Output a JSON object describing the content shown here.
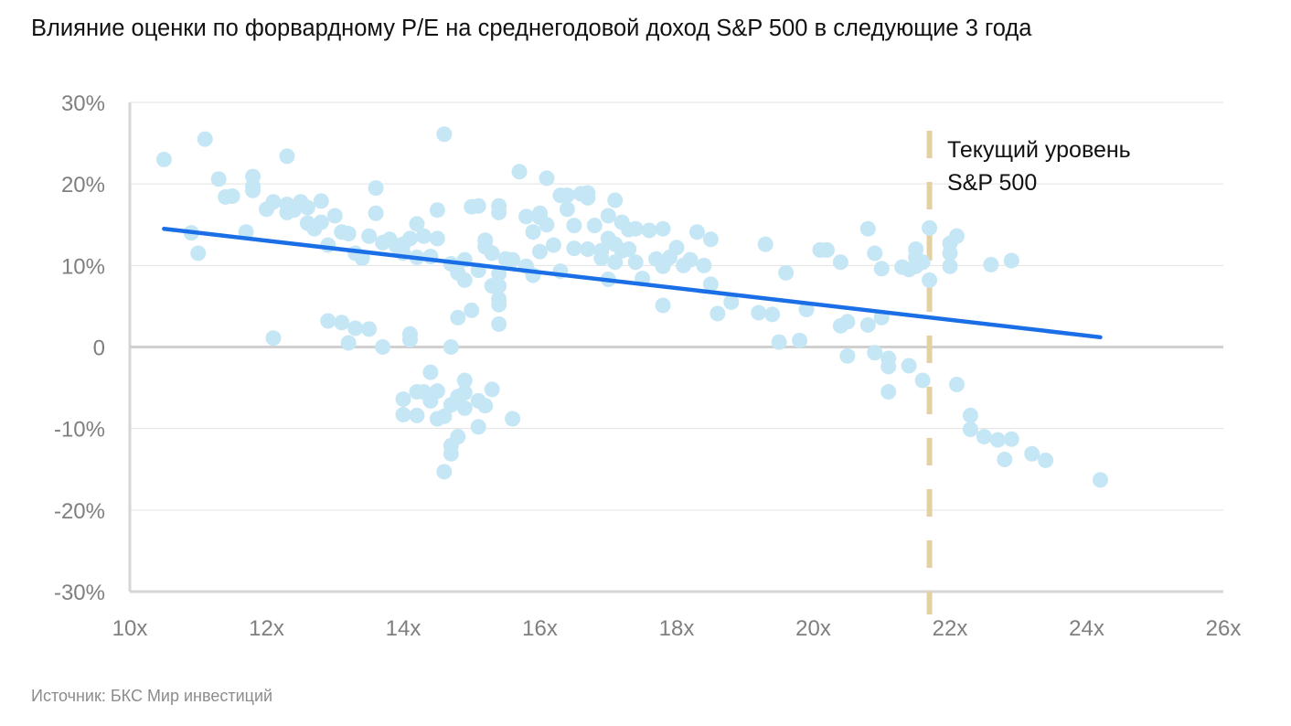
{
  "chart_data": {
    "type": "scatter",
    "title": "Влияние оценки по форвардному P/E на среднегодовой доход S&P 500 в следующие 3 года",
    "xlabel": "",
    "ylabel": "",
    "xlim": [
      10,
      26
    ],
    "ylim": [
      -30,
      30
    ],
    "x_ticks": [
      10,
      12,
      14,
      16,
      18,
      20,
      22,
      24,
      26
    ],
    "x_tick_labels": [
      "10x",
      "12x",
      "14x",
      "16x",
      "18x",
      "20x",
      "22x",
      "24x",
      "26x"
    ],
    "y_ticks": [
      -30,
      -20,
      -10,
      0,
      10,
      20,
      30
    ],
    "y_tick_labels": [
      "-30%",
      "-20%",
      "-10%",
      "0",
      "10%",
      "20%",
      "30%"
    ],
    "grid": "horizontal",
    "colors": {
      "points": "#c5e6f5",
      "trend": "#1a6ee6",
      "current_line": "#e3d1a4",
      "grid": "#e3e3e3",
      "axis": "#d6d6d6",
      "zero_line": "#d0d0d0"
    },
    "series": [
      {
        "points": [
          [
            10.5,
            23
          ],
          [
            11.1,
            25.5
          ],
          [
            11.3,
            20.6
          ],
          [
            11.4,
            18.4
          ],
          [
            11.5,
            18.5
          ],
          [
            10.9,
            14
          ],
          [
            11.0,
            11.5
          ],
          [
            11.7,
            14.1
          ],
          [
            11.8,
            20.9
          ],
          [
            11.8,
            19.7
          ],
          [
            11.8,
            19.2
          ],
          [
            12.0,
            16.9
          ],
          [
            12.1,
            17.8
          ],
          [
            12.3,
            23.4
          ],
          [
            12.3,
            17.5
          ],
          [
            12.3,
            16.5
          ],
          [
            12.4,
            16.8
          ],
          [
            12.5,
            17.8
          ],
          [
            12.6,
            17.1
          ],
          [
            12.6,
            15.2
          ],
          [
            12.7,
            14.5
          ],
          [
            12.8,
            17.9
          ],
          [
            12.8,
            15.3
          ],
          [
            12.9,
            12.5
          ],
          [
            13.0,
            16.1
          ],
          [
            13.1,
            14.1
          ],
          [
            13.2,
            13.9
          ],
          [
            13.3,
            11.5
          ],
          [
            13.4,
            10.9
          ],
          [
            13.5,
            13.6
          ],
          [
            13.6,
            19.5
          ],
          [
            13.6,
            16.4
          ],
          [
            13.7,
            12.8
          ],
          [
            13.8,
            13.2
          ],
          [
            13.9,
            12.4
          ],
          [
            14.0,
            11.5
          ],
          [
            14.0,
            12.6
          ],
          [
            14.1,
            13.3
          ],
          [
            14.2,
            15.1
          ],
          [
            14.2,
            11.0
          ],
          [
            14.3,
            13.6
          ],
          [
            14.4,
            11.1
          ],
          [
            14.5,
            13.3
          ],
          [
            14.5,
            16.8
          ],
          [
            14.6,
            26.1
          ],
          [
            14.7,
            10.2
          ],
          [
            14.8,
            9.1
          ],
          [
            14.9,
            10.7
          ],
          [
            14.9,
            8.2
          ],
          [
            15.0,
            17.2
          ],
          [
            15.1,
            17.3
          ],
          [
            15.1,
            9.4
          ],
          [
            15.2,
            13.1
          ],
          [
            15.2,
            12.3
          ],
          [
            15.3,
            11.5
          ],
          [
            15.3,
            7.5
          ],
          [
            15.4,
            17.3
          ],
          [
            15.4,
            16.5
          ],
          [
            15.4,
            9.0
          ],
          [
            15.4,
            7.5
          ],
          [
            15.4,
            5.9
          ],
          [
            15.4,
            5.2
          ],
          [
            15.5,
            10.8
          ],
          [
            15.6,
            10.7
          ],
          [
            15.7,
            21.5
          ],
          [
            15.8,
            9.9
          ],
          [
            15.8,
            16.0
          ],
          [
            15.9,
            14.1
          ],
          [
            15.9,
            8.8
          ],
          [
            16.0,
            15.9
          ],
          [
            16.0,
            16.4
          ],
          [
            16.0,
            11.7
          ],
          [
            16.1,
            20.7
          ],
          [
            16.1,
            15.0
          ],
          [
            16.2,
            12.5
          ],
          [
            16.3,
            18.6
          ],
          [
            16.3,
            9.3
          ],
          [
            16.4,
            18.6
          ],
          [
            16.4,
            16.9
          ],
          [
            16.5,
            14.9
          ],
          [
            16.5,
            12.1
          ],
          [
            16.6,
            18.8
          ],
          [
            16.7,
            18.9
          ],
          [
            16.7,
            18.3
          ],
          [
            16.7,
            12.0
          ],
          [
            16.8,
            14.9
          ],
          [
            16.9,
            10.9
          ],
          [
            16.9,
            11.8
          ],
          [
            17.0,
            16.1
          ],
          [
            17.0,
            13.3
          ],
          [
            17.0,
            8.3
          ],
          [
            17.1,
            18.0
          ],
          [
            17.1,
            12.6
          ],
          [
            17.1,
            10.4
          ],
          [
            17.2,
            15.3
          ],
          [
            17.2,
            11.8
          ],
          [
            17.3,
            14.4
          ],
          [
            17.3,
            12.0
          ],
          [
            17.4,
            14.5
          ],
          [
            17.4,
            10.4
          ],
          [
            17.5,
            8.4
          ],
          [
            17.6,
            14.3
          ],
          [
            17.7,
            10.8
          ],
          [
            17.8,
            14.5
          ],
          [
            17.8,
            9.9
          ],
          [
            17.8,
            5.1
          ],
          [
            17.9,
            11.0
          ],
          [
            18.0,
            12.2
          ],
          [
            18.1,
            10.0
          ],
          [
            18.2,
            10.7
          ],
          [
            18.3,
            14.1
          ],
          [
            18.4,
            10.0
          ],
          [
            18.5,
            13.2
          ],
          [
            18.5,
            7.7
          ],
          [
            18.6,
            4.1
          ],
          [
            18.8,
            5.5
          ],
          [
            19.2,
            4.2
          ],
          [
            19.3,
            12.6
          ],
          [
            19.4,
            4.0
          ],
          [
            19.5,
            0.6
          ],
          [
            19.6,
            9.1
          ],
          [
            19.8,
            0.8
          ],
          [
            19.9,
            4.6
          ],
          [
            20.1,
            11.9
          ],
          [
            20.2,
            11.9
          ],
          [
            20.4,
            10.4
          ],
          [
            20.4,
            2.6
          ],
          [
            20.5,
            3.1
          ],
          [
            20.5,
            -1.1
          ],
          [
            20.8,
            2.7
          ],
          [
            20.8,
            14.5
          ],
          [
            20.9,
            11.5
          ],
          [
            20.9,
            -0.7
          ],
          [
            21.0,
            3.6
          ],
          [
            21.0,
            9.6
          ],
          [
            21.1,
            -1.4
          ],
          [
            21.1,
            -5.5
          ],
          [
            21.1,
            -2.4
          ],
          [
            21.3,
            9.8
          ],
          [
            21.4,
            9.5
          ],
          [
            21.4,
            -2.3
          ],
          [
            21.5,
            9.9
          ],
          [
            21.5,
            11.0
          ],
          [
            21.5,
            12.0
          ],
          [
            21.6,
            10.4
          ],
          [
            21.6,
            -4.1
          ],
          [
            21.7,
            14.6
          ],
          [
            21.7,
            8.2
          ],
          [
            22.0,
            11.5
          ],
          [
            22.0,
            9.9
          ],
          [
            22.0,
            12.7
          ],
          [
            22.1,
            13.6
          ],
          [
            22.1,
            -4.6
          ],
          [
            22.3,
            -10.1
          ],
          [
            22.3,
            -8.4
          ],
          [
            22.5,
            -11.0
          ],
          [
            22.6,
            10.1
          ],
          [
            22.7,
            -11.4
          ],
          [
            22.8,
            -13.8
          ],
          [
            22.9,
            -11.3
          ],
          [
            22.9,
            10.6
          ],
          [
            23.2,
            -13.1
          ],
          [
            23.4,
            -13.9
          ],
          [
            24.2,
            -16.3
          ],
          [
            12.1,
            1.1
          ],
          [
            12.9,
            3.2
          ],
          [
            13.1,
            3.0
          ],
          [
            13.2,
            0.5
          ],
          [
            13.3,
            2.3
          ],
          [
            13.5,
            2.2
          ],
          [
            13.7,
            0.0
          ],
          [
            14.0,
            -6.4
          ],
          [
            14.0,
            -8.3
          ],
          [
            14.1,
            1.6
          ],
          [
            14.1,
            0.9
          ],
          [
            14.2,
            -5.5
          ],
          [
            14.2,
            -8.4
          ],
          [
            14.3,
            -5.5
          ],
          [
            14.4,
            -3.1
          ],
          [
            14.4,
            -6.6
          ],
          [
            14.5,
            -8.8
          ],
          [
            14.5,
            -5.4
          ],
          [
            14.6,
            -15.3
          ],
          [
            14.6,
            -8.5
          ],
          [
            14.7,
            -13.1
          ],
          [
            14.7,
            -12.1
          ],
          [
            14.7,
            -7.1
          ],
          [
            14.7,
            0.0
          ],
          [
            14.8,
            -11.0
          ],
          [
            14.8,
            -6.1
          ],
          [
            14.8,
            3.6
          ],
          [
            14.9,
            -4.1
          ],
          [
            14.9,
            -7.5
          ],
          [
            14.9,
            -5.6
          ],
          [
            15.0,
            4.5
          ],
          [
            15.1,
            -9.8
          ],
          [
            15.1,
            -6.6
          ],
          [
            15.2,
            -7.2
          ],
          [
            15.3,
            -5.2
          ],
          [
            15.4,
            2.8
          ],
          [
            15.6,
            -8.8
          ]
        ]
      }
    ],
    "trendline": {
      "x": [
        10.5,
        24.2
      ],
      "y": [
        14.5,
        1.2
      ]
    },
    "reference_line": {
      "x": 21.7,
      "label_lines": [
        "Текущий уровень",
        "S&P 500"
      ]
    }
  },
  "source_note": "Источник: БКС Мир инвестиций"
}
